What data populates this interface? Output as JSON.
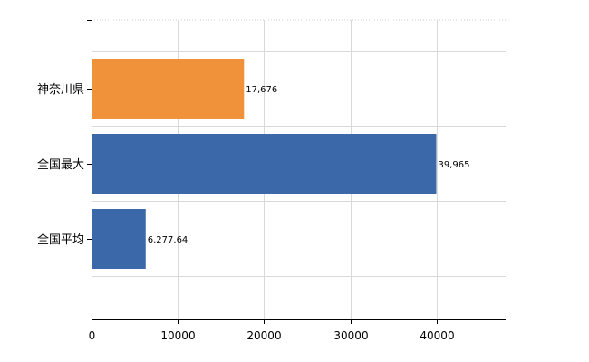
{
  "chart_data": {
    "type": "bar",
    "orientation": "horizontal",
    "categories": [
      "神奈川県",
      "全国最大",
      "全国平均"
    ],
    "values": [
      17676,
      39965,
      6277.64
    ],
    "data_labels": [
      "17,676",
      "39,965",
      "6,277.64"
    ],
    "bar_colors": [
      "#f0923a",
      "#3b68a8",
      "#3b68a8"
    ],
    "xlim": [
      0,
      48000
    ],
    "xticks": [
      0,
      10000,
      20000,
      30000,
      40000
    ],
    "xtick_labels": [
      "0",
      "10000",
      "20000",
      "30000",
      "40000"
    ],
    "grid": true,
    "legend": "none"
  }
}
